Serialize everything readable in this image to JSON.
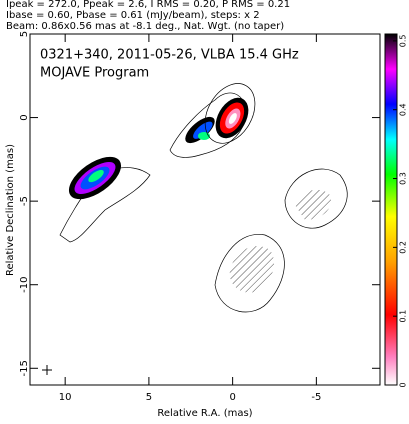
{
  "chart_data": {
    "type": "contour-map",
    "header": [
      "Ipeak = 272.0, Ppeak = 2.6, I RMS = 0.20, P RMS = 0.21",
      "Ibase = 0.60, Pbase = 0.61 (mJy/beam), steps: x 2",
      "Beam: 0.86x0.56 mas at -8.1 deg., Nat. Wgt. (no taper)"
    ],
    "title": "0321+340, 2011-05-26, VLBA 15.4 GHz",
    "subtitle": "MOJAVE Program",
    "x_label": "Relative R.A. (mas)",
    "y_label": "Relative Declination (mas)",
    "xlim": [
      12.1,
      -8.8
    ],
    "xticks": [
      10,
      5,
      0,
      -5
    ],
    "ylim": [
      -16,
      5
    ],
    "yticks": [
      5,
      0,
      -5,
      -10,
      -15
    ],
    "colorbar_lim": [
      0,
      0.51
    ],
    "colorbar_ticks": [
      0,
      0.1,
      0.2,
      0.3,
      0.4,
      0.5
    ]
  }
}
